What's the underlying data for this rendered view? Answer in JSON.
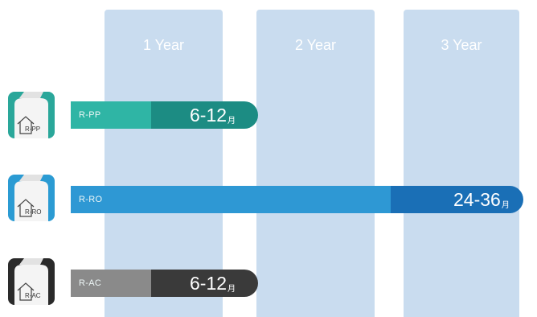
{
  "columns": [
    {
      "label": "1 Year"
    },
    {
      "label": "2 Year"
    },
    {
      "label": "3 Year"
    }
  ],
  "rows": [
    {
      "name": "R-PP",
      "icon_label": "R-PP",
      "icon": "filter-cartridge-icon",
      "duration": "6-12",
      "unit": "月",
      "color_light": "#2fb5a5",
      "color_dark": "#1c8c83"
    },
    {
      "name": "R-RO",
      "icon_label": "R-RO",
      "icon": "filter-cartridge-icon",
      "duration": "24-36",
      "unit": "月",
      "color_light": "#2e98d4",
      "color_dark": "#1a6fb6"
    },
    {
      "name": "R-AC",
      "icon_label": "R-AC",
      "icon": "filter-cartridge-icon",
      "duration": "6-12",
      "unit": "月",
      "color_light": "#8a8a8a",
      "color_dark": "#3a3a3a"
    }
  ]
}
